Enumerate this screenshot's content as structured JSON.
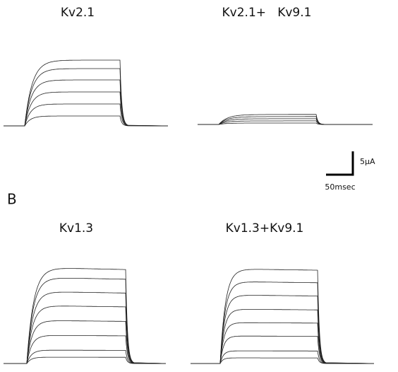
{
  "panels": [
    {
      "title": "Kv2.1"
    },
    {
      "title": "Kv2.1+   Kv9.1"
    },
    {
      "title": "Kv1.3"
    },
    {
      "title": "Kv1.3+Kv9.1"
    }
  ],
  "panel_label": "B",
  "scale_bar": {
    "current": "5μA",
    "time": "50msec"
  }
}
